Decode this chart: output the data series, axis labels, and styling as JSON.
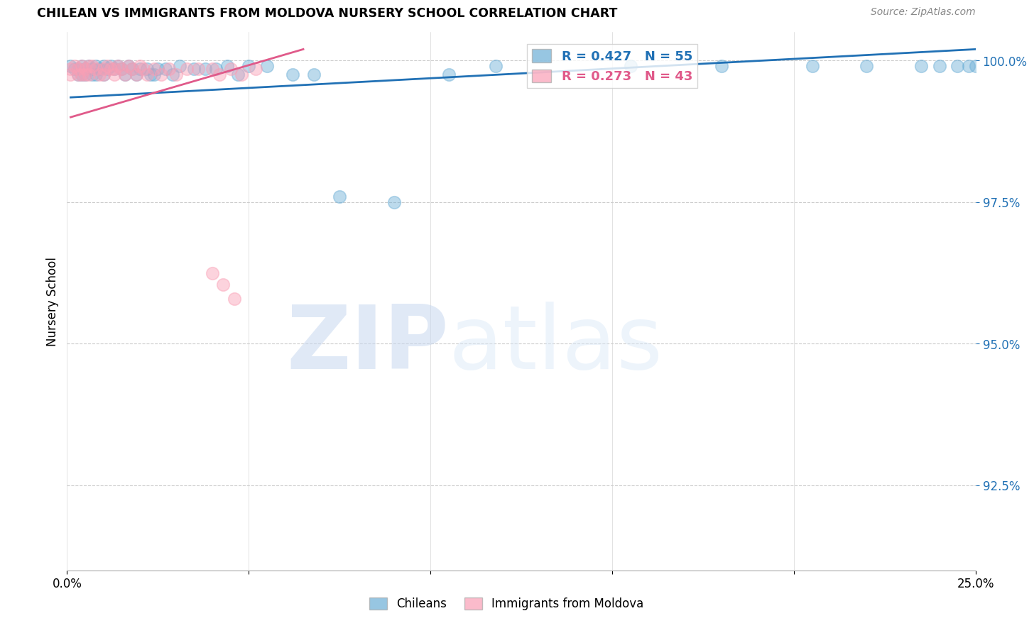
{
  "title": "CHILEAN VS IMMIGRANTS FROM MOLDOVA NURSERY SCHOOL CORRELATION CHART",
  "source": "Source: ZipAtlas.com",
  "ylabel": "Nursery School",
  "xlim": [
    0.0,
    0.25
  ],
  "ylim": [
    0.91,
    1.005
  ],
  "yticks": [
    0.925,
    0.95,
    0.975,
    1.0
  ],
  "ytick_labels": [
    "92.5%",
    "95.0%",
    "97.5%",
    "100.0%"
  ],
  "xticks": [
    0.0,
    0.05,
    0.1,
    0.15,
    0.2,
    0.25
  ],
  "xtick_labels": [
    "0.0%",
    "",
    "",
    "",
    "",
    "25.0%"
  ],
  "blue_color": "#6baed6",
  "pink_color": "#fa9fb5",
  "blue_line_color": "#2171b5",
  "pink_line_color": "#e05a8a",
  "legend_blue_label": "R = 0.427   N = 55",
  "legend_pink_label": "R = 0.273   N = 43",
  "blue_scatter_x": [
    0.001,
    0.002,
    0.003,
    0.003,
    0.004,
    0.004,
    0.005,
    0.005,
    0.006,
    0.007,
    0.007,
    0.008,
    0.008,
    0.009,
    0.01,
    0.01,
    0.011,
    0.012,
    0.013,
    0.014,
    0.015,
    0.016,
    0.017,
    0.018,
    0.019,
    0.02,
    0.022,
    0.023,
    0.024,
    0.025,
    0.027,
    0.029,
    0.031,
    0.035,
    0.038,
    0.041,
    0.044,
    0.047,
    0.05,
    0.055,
    0.062,
    0.068,
    0.075,
    0.09,
    0.105,
    0.118,
    0.155,
    0.18,
    0.205,
    0.22,
    0.235,
    0.24,
    0.245,
    0.248,
    0.25
  ],
  "blue_scatter_y": [
    0.999,
    0.9985,
    0.9985,
    0.9975,
    0.999,
    0.9975,
    0.9985,
    0.9975,
    0.999,
    0.9985,
    0.9975,
    0.999,
    0.9975,
    0.9985,
    0.999,
    0.9975,
    0.9985,
    0.999,
    0.9985,
    0.999,
    0.9985,
    0.9975,
    0.999,
    0.9985,
    0.9975,
    0.9985,
    0.9985,
    0.9975,
    0.9975,
    0.9985,
    0.9985,
    0.9975,
    0.999,
    0.9985,
    0.9985,
    0.9985,
    0.999,
    0.9975,
    0.999,
    0.999,
    0.9975,
    0.9975,
    0.976,
    0.975,
    0.9975,
    0.999,
    0.999,
    0.999,
    0.999,
    0.999,
    0.999,
    0.999,
    0.999,
    0.999,
    0.999
  ],
  "pink_scatter_x": [
    0.001,
    0.001,
    0.002,
    0.003,
    0.003,
    0.004,
    0.004,
    0.005,
    0.005,
    0.006,
    0.006,
    0.007,
    0.008,
    0.009,
    0.01,
    0.01,
    0.011,
    0.012,
    0.013,
    0.013,
    0.014,
    0.015,
    0.016,
    0.017,
    0.018,
    0.019,
    0.02,
    0.021,
    0.022,
    0.024,
    0.026,
    0.028,
    0.03,
    0.033,
    0.036,
    0.04,
    0.042,
    0.045,
    0.048,
    0.052,
    0.04,
    0.043,
    0.046
  ],
  "pink_scatter_y": [
    0.9985,
    0.9975,
    0.999,
    0.9985,
    0.9975,
    0.999,
    0.9975,
    0.9985,
    0.9975,
    0.999,
    0.9975,
    0.999,
    0.9985,
    0.9975,
    0.9985,
    0.9975,
    0.999,
    0.9985,
    0.9975,
    0.9985,
    0.999,
    0.9985,
    0.9975,
    0.999,
    0.9985,
    0.9975,
    0.999,
    0.9985,
    0.9975,
    0.9985,
    0.9975,
    0.9985,
    0.9975,
    0.9985,
    0.9985,
    0.9985,
    0.9975,
    0.9985,
    0.9975,
    0.9985,
    0.9625,
    0.9605,
    0.958
  ],
  "blue_trendline_x": [
    0.001,
    0.25
  ],
  "blue_trendline_y": [
    0.9935,
    1.002
  ],
  "pink_trendline_x": [
    0.001,
    0.065
  ],
  "pink_trendline_y": [
    0.99,
    1.002
  ],
  "watermark_zip": "ZIP",
  "watermark_atlas": "atlas",
  "background_color": "#ffffff",
  "grid_color": "#cccccc"
}
